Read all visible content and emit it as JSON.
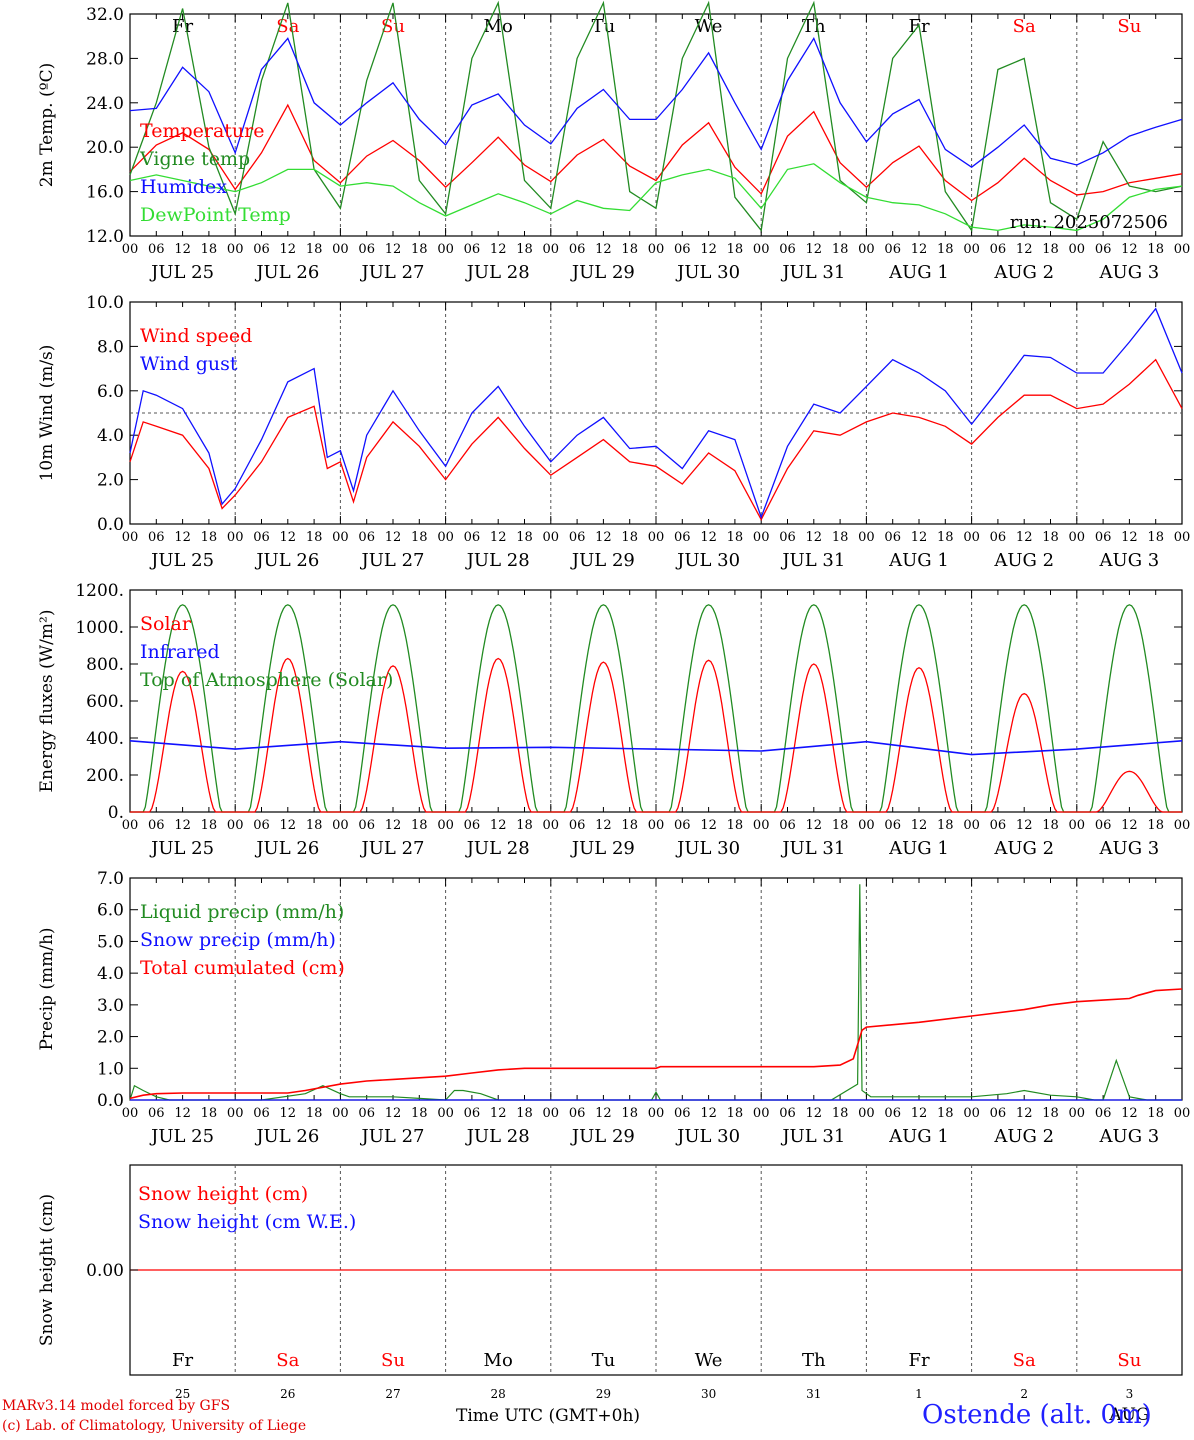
{
  "run_label": "run: 2025072506",
  "footer": {
    "line1": "MARv3.14 model forced by GFS",
    "line2": "(c) Lab. of Climatology, University of Liege",
    "station": "Ostende (alt. 0m)",
    "xaxis_title": "Time UTC (GMT+0h)"
  },
  "days": {
    "weekday_labels": [
      "Fr",
      "Sa",
      "Su",
      "Mo",
      "Tu",
      "We",
      "Th",
      "Fr",
      "Sa",
      "Su"
    ],
    "weekend_flags": [
      false,
      true,
      true,
      false,
      false,
      false,
      false,
      false,
      true,
      true
    ],
    "date_labels": [
      "JUL 25",
      "JUL 26",
      "JUL 27",
      "JUL 28",
      "JUL 29",
      "JUL 30",
      "JUL 31",
      "AUG  1",
      "AUG  2",
      "AUG  3"
    ],
    "day_numbers": [
      "25",
      "26",
      "27",
      "28",
      "29",
      "30",
      "31",
      "1",
      "2",
      "3"
    ],
    "hour_ticks": [
      "00",
      "06",
      "12",
      "18"
    ],
    "month_label_bottom": "AUG"
  },
  "colors": {
    "red": "#ff0000",
    "green": "#228b22",
    "blue": "#1010ff",
    "lightgreen": "#33dd33",
    "black": "#000000"
  },
  "chart_data": [
    {
      "type": "line",
      "ylabel": "2m Temp. (ºC)",
      "ylim": [
        12,
        32
      ],
      "yticks": [
        "32.0",
        "28.0",
        "24.0",
        "20.0",
        "16.0",
        "12.0"
      ],
      "x_unit": "hours since JUL 25 00 UTC",
      "series": [
        {
          "name": "Temperature",
          "color": "red",
          "x": [
            0,
            6,
            12,
            18,
            24,
            30,
            36,
            42,
            48,
            54,
            60,
            66,
            72,
            78,
            84,
            90,
            96,
            102,
            108,
            114,
            120,
            126,
            132,
            138,
            144,
            150,
            156,
            162,
            168,
            174,
            180,
            186,
            192,
            198,
            204,
            210,
            216,
            222,
            228,
            234,
            240
          ],
          "y": [
            17.8,
            20.2,
            21.3,
            19.8,
            16.2,
            19.5,
            23.8,
            18.8,
            16.8,
            19.2,
            20.6,
            18.8,
            16.4,
            18.6,
            20.9,
            18.4,
            16.9,
            19.3,
            20.7,
            18.3,
            17.0,
            20.2,
            22.2,
            18.2,
            15.8,
            21.0,
            23.2,
            18.6,
            16.4,
            18.6,
            20.1,
            17.0,
            15.2,
            16.8,
            19.0,
            17.0,
            15.7,
            16.0,
            16.8,
            17.2,
            17.6
          ]
        },
        {
          "name": "Vigne temp",
          "color": "green",
          "x": [
            0,
            6,
            12,
            18,
            24,
            30,
            36,
            42,
            48,
            54,
            60,
            66,
            72,
            78,
            84,
            90,
            96,
            102,
            108,
            114,
            120,
            126,
            132,
            138,
            144,
            150,
            156,
            162,
            168,
            174,
            180,
            186,
            192,
            198,
            204,
            210,
            216,
            222,
            228,
            234,
            240
          ],
          "y": [
            17.5,
            24.0,
            32.5,
            20.0,
            14.0,
            26.0,
            33.0,
            18.0,
            14.5,
            26.0,
            33.0,
            17.0,
            14.0,
            28.0,
            33.0,
            17.0,
            14.5,
            28.0,
            33.0,
            16.0,
            14.5,
            28.0,
            33.0,
            15.5,
            12.5,
            28.0,
            33.0,
            17.0,
            15.0,
            28.0,
            31.0,
            16.0,
            12.5,
            27.0,
            28.0,
            15.0,
            13.5,
            20.5,
            16.5,
            16.0,
            16.5
          ]
        },
        {
          "name": "Humidex",
          "color": "blue",
          "x": [
            0,
            6,
            12,
            18,
            24,
            30,
            36,
            42,
            48,
            54,
            60,
            66,
            72,
            78,
            84,
            90,
            96,
            102,
            108,
            114,
            120,
            126,
            132,
            138,
            144,
            150,
            156,
            162,
            168,
            174,
            180,
            186,
            192,
            198,
            204,
            210,
            216,
            222,
            228,
            234,
            240
          ],
          "y": [
            23.3,
            23.5,
            27.2,
            25.0,
            19.5,
            27.0,
            29.8,
            24.0,
            22.0,
            24.0,
            25.8,
            22.5,
            20.2,
            23.8,
            24.8,
            22.0,
            20.3,
            23.5,
            25.2,
            22.5,
            22.5,
            25.2,
            28.5,
            24.0,
            19.8,
            26.0,
            29.8,
            24.0,
            20.5,
            23.0,
            24.3,
            19.8,
            18.2,
            20.0,
            22.0,
            19.0,
            18.4,
            19.5,
            21.0,
            21.8,
            22.5
          ]
        },
        {
          "name": "DewPoint Temp",
          "color": "lightgreen",
          "x": [
            0,
            6,
            12,
            18,
            24,
            30,
            36,
            42,
            48,
            54,
            60,
            66,
            72,
            78,
            84,
            90,
            96,
            102,
            108,
            114,
            120,
            126,
            132,
            138,
            144,
            150,
            156,
            162,
            168,
            174,
            180,
            186,
            192,
            198,
            204,
            210,
            216,
            222,
            228,
            234,
            240
          ],
          "y": [
            17.0,
            17.5,
            17.0,
            16.5,
            16.0,
            16.8,
            18.0,
            18.0,
            16.5,
            16.8,
            16.5,
            15.0,
            13.8,
            14.8,
            15.8,
            15.0,
            14.0,
            15.2,
            14.5,
            14.3,
            16.8,
            17.5,
            18.0,
            17.2,
            14.5,
            18.0,
            18.5,
            16.8,
            15.5,
            15.0,
            14.8,
            14.0,
            12.8,
            12.5,
            13.0,
            12.8,
            12.5,
            13.5,
            15.5,
            16.2,
            16.5
          ]
        }
      ]
    },
    {
      "type": "line",
      "ylabel": "10m Wind (m/s)",
      "ylim": [
        0,
        10
      ],
      "yticks": [
        "10.0",
        "8.0",
        "6.0",
        "4.0",
        "2.0",
        "0.0"
      ],
      "reference_line": 5.0,
      "series": [
        {
          "name": "Wind speed",
          "color": "red",
          "x": [
            0,
            3,
            6,
            12,
            18,
            21,
            24,
            30,
            36,
            42,
            45,
            48,
            51,
            54,
            60,
            66,
            72,
            78,
            84,
            90,
            96,
            102,
            108,
            114,
            120,
            126,
            132,
            138,
            144,
            150,
            156,
            162,
            168,
            174,
            180,
            186,
            192,
            198,
            204,
            210,
            216,
            222,
            228,
            234,
            240
          ],
          "y": [
            2.8,
            4.6,
            4.4,
            4.0,
            2.5,
            0.7,
            1.3,
            2.8,
            4.8,
            5.3,
            2.5,
            2.8,
            1.0,
            3.0,
            4.6,
            3.5,
            2.0,
            3.6,
            4.8,
            3.4,
            2.2,
            3.0,
            3.8,
            2.8,
            2.6,
            1.8,
            3.2,
            2.4,
            0.2,
            2.5,
            4.2,
            4.0,
            4.6,
            5.0,
            4.8,
            4.4,
            3.6,
            4.8,
            5.8,
            5.8,
            5.2,
            5.4,
            6.3,
            7.4,
            5.2
          ]
        },
        {
          "name": "Wind gust",
          "color": "blue",
          "x": [
            0,
            3,
            6,
            12,
            18,
            21,
            24,
            30,
            36,
            42,
            45,
            48,
            51,
            54,
            60,
            66,
            72,
            78,
            84,
            90,
            96,
            102,
            108,
            114,
            120,
            126,
            132,
            138,
            144,
            150,
            156,
            162,
            168,
            174,
            180,
            186,
            192,
            198,
            204,
            210,
            216,
            222,
            228,
            234,
            240
          ],
          "y": [
            3.2,
            6.0,
            5.8,
            5.2,
            3.2,
            0.9,
            1.6,
            3.8,
            6.4,
            7.0,
            3.0,
            3.3,
            1.5,
            4.0,
            6.0,
            4.2,
            2.6,
            5.0,
            6.2,
            4.4,
            2.8,
            4.0,
            4.8,
            3.4,
            3.5,
            2.5,
            4.2,
            3.8,
            0.3,
            3.5,
            5.4,
            5.0,
            6.2,
            7.4,
            6.8,
            6.0,
            4.5,
            6.0,
            7.6,
            7.5,
            6.8,
            6.8,
            8.2,
            9.7,
            6.8
          ]
        }
      ]
    },
    {
      "type": "line",
      "ylabel": "Energy fluxes (W/m²)",
      "ylim": [
        0,
        1200
      ],
      "yticks": [
        "1200.",
        "1000.",
        "800.",
        "600.",
        "400.",
        "200.",
        "0."
      ],
      "series": [
        {
          "name": "Solar",
          "color": "red",
          "peaks": [
            760,
            830,
            790,
            830,
            810,
            820,
            800,
            780,
            640,
            220
          ]
        },
        {
          "name": "Infrared",
          "color": "blue",
          "x": [
            0,
            24,
            48,
            72,
            96,
            120,
            144,
            168,
            192,
            216,
            240
          ],
          "y": [
            385,
            340,
            380,
            345,
            350,
            340,
            330,
            380,
            310,
            340,
            385
          ]
        },
        {
          "name": "Top of Atmosphere (Solar)",
          "color": "green",
          "peak": 1120
        }
      ]
    },
    {
      "type": "line",
      "ylabel": "Precip (mm/h)",
      "ylim": [
        0,
        7
      ],
      "yticks": [
        "7.0",
        "6.0",
        "5.0",
        "4.0",
        "3.0",
        "2.0",
        "1.0",
        "0.0"
      ],
      "series": [
        {
          "name": "Liquid precip (mm/h)",
          "color": "green",
          "x": [
            0,
            1,
            3,
            6,
            9,
            12,
            30,
            40,
            44,
            48,
            50,
            54,
            60,
            66,
            72,
            74,
            76,
            80,
            84,
            96,
            108,
            119,
            120,
            121,
            130,
            144,
            160,
            166,
            166.5,
            167,
            169,
            172,
            180,
            192,
            200,
            204,
            210,
            216,
            220,
            222,
            225,
            228,
            232,
            236,
            240
          ],
          "y": [
            0,
            0.45,
            0.3,
            0.1,
            0,
            0,
            0,
            0.2,
            0.45,
            0.2,
            0.1,
            0.1,
            0.1,
            0.05,
            0,
            0.3,
            0.3,
            0.2,
            0,
            0,
            0,
            0,
            0.25,
            0,
            0,
            0,
            0,
            0.5,
            6.8,
            0.3,
            0.1,
            0.1,
            0.1,
            0.1,
            0.2,
            0.3,
            0.15,
            0.1,
            0,
            0,
            1.25,
            0.1,
            0,
            0,
            0
          ]
        },
        {
          "name": "Snow precip (mm/h)",
          "color": "blue",
          "x": [
            0,
            240
          ],
          "y": [
            0,
            0
          ]
        },
        {
          "name": "Total cumulated (cm)",
          "color": "red",
          "x": [
            0,
            3,
            6,
            12,
            24,
            36,
            40,
            42,
            48,
            54,
            60,
            66,
            72,
            78,
            84,
            90,
            96,
            108,
            120,
            121,
            132,
            144,
            156,
            162,
            165,
            167,
            168,
            180,
            192,
            204,
            210,
            216,
            222,
            228,
            230,
            234,
            240
          ],
          "y": [
            0.05,
            0.15,
            0.2,
            0.22,
            0.22,
            0.22,
            0.3,
            0.35,
            0.5,
            0.6,
            0.65,
            0.7,
            0.75,
            0.85,
            0.95,
            1.0,
            1.0,
            1.0,
            1.0,
            1.05,
            1.05,
            1.05,
            1.05,
            1.1,
            1.3,
            2.2,
            2.3,
            2.45,
            2.65,
            2.85,
            3.0,
            3.1,
            3.15,
            3.2,
            3.3,
            3.45,
            3.5
          ]
        }
      ]
    },
    {
      "type": "line",
      "ylabel": "Snow height (cm)",
      "yticks": [
        "0.00"
      ],
      "series": [
        {
          "name": "Snow height (cm)",
          "color": "red",
          "x": [
            0,
            240
          ],
          "y": [
            0,
            0
          ]
        },
        {
          "name": "Snow height (cm W.E.)",
          "color": "blue",
          "x": [
            0,
            240
          ],
          "y": [
            0,
            0
          ]
        }
      ]
    }
  ]
}
